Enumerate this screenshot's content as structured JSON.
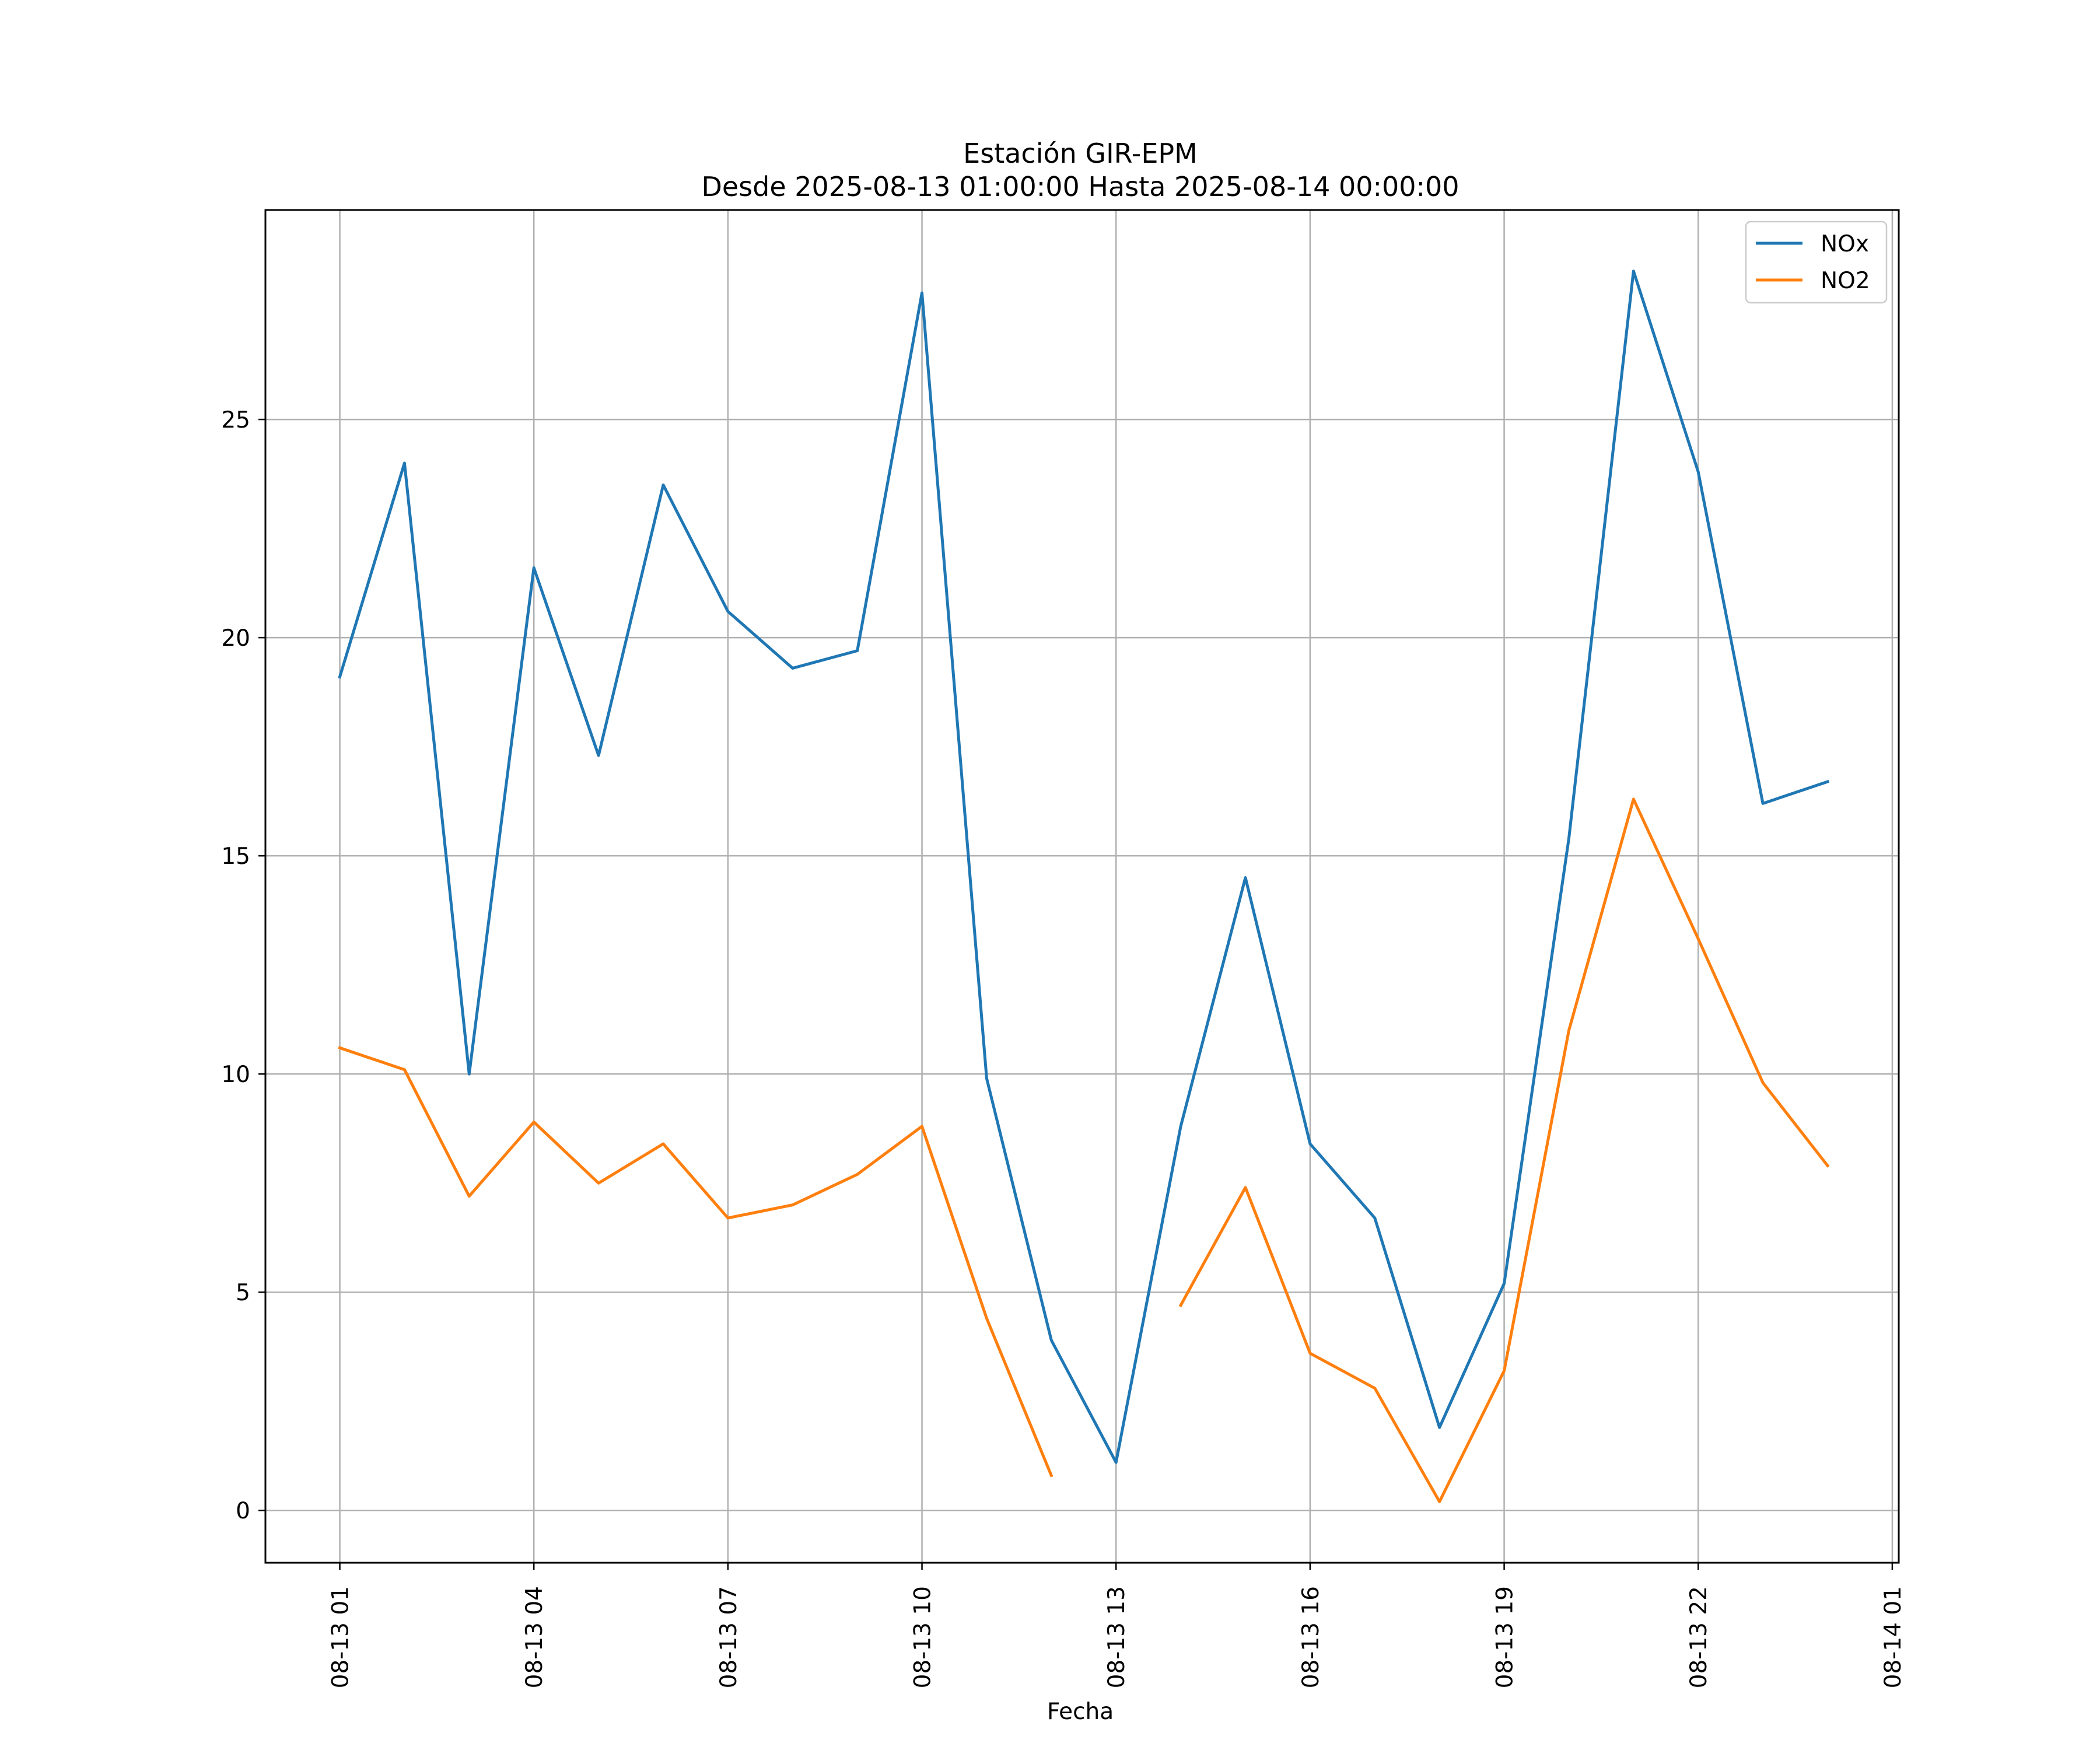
{
  "chart_data": {
    "type": "line",
    "title": "Estación GIR-EPM",
    "subtitle": "Desde 2025-08-13 01:00:00 Hasta 2025-08-14 00:00:00",
    "xlabel": "Fecha",
    "ylabel": "",
    "x": [
      1,
      2,
      3,
      4,
      5,
      6,
      7,
      8,
      9,
      10,
      11,
      12,
      13,
      14,
      15,
      16,
      17,
      18,
      19,
      20,
      21,
      22,
      23,
      24
    ],
    "xlim": [
      -0.15,
      25.1
    ],
    "ylim": [
      -1.2,
      29.8
    ],
    "x_ticks": [
      1,
      4,
      7,
      10,
      13,
      16,
      19,
      22,
      25
    ],
    "x_tick_labels": [
      "08-13 01",
      "08-13 04",
      "08-13 07",
      "08-13 10",
      "08-13 13",
      "08-13 16",
      "08-13 19",
      "08-13 22",
      "08-14 01"
    ],
    "y_ticks": [
      0,
      5,
      10,
      15,
      20,
      25
    ],
    "y_tick_labels": [
      "0",
      "5",
      "10",
      "15",
      "20",
      "25"
    ],
    "grid": true,
    "legend_position": "top-right",
    "series": [
      {
        "name": "NOx",
        "color": "#1f77b4",
        "values": [
          19.1,
          24.0,
          10.0,
          21.6,
          17.3,
          23.5,
          20.6,
          19.3,
          19.7,
          27.9,
          9.9,
          3.9,
          1.1,
          8.8,
          14.5,
          8.4,
          6.7,
          1.9,
          5.2,
          15.4,
          28.4,
          23.8,
          16.2,
          16.7
        ]
      },
      {
        "name": "NO2",
        "color": "#ff7f0e",
        "values": [
          10.6,
          10.1,
          7.2,
          8.9,
          7.5,
          8.4,
          6.7,
          7.0,
          7.7,
          8.8,
          4.4,
          0.8,
          null,
          4.7,
          7.4,
          3.6,
          2.8,
          0.2,
          3.2,
          11.0,
          16.3,
          13.1,
          9.8,
          7.9
        ]
      }
    ]
  }
}
